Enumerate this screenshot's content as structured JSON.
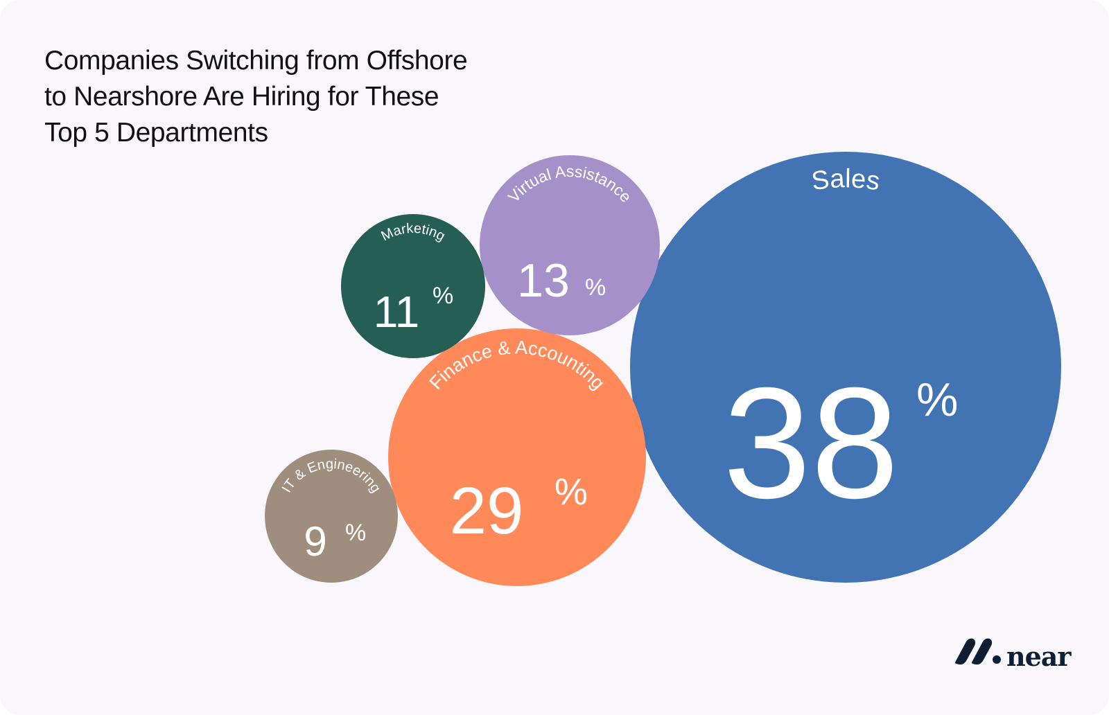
{
  "title": "Companies Switching from Offshore to Nearshore Are Hiring for These Top 5 Departments",
  "title_lines": [
    "Companies Switching from Offshore",
    "to Nearshore Are Hiring for These",
    "Top 5 Departments"
  ],
  "logo": {
    "text": "near",
    "icon": "near-logo-icon",
    "color": "#0e1f33"
  },
  "chart_data": {
    "type": "bubble",
    "title": "Companies Switching from Offshore to Nearshore Are Hiring for These Top 5 Departments",
    "unit": "%",
    "series": [
      {
        "name": "Sales",
        "value": 38,
        "color": "#4274b4"
      },
      {
        "name": "Finance & Accounting",
        "value": 29,
        "color": "#ff8959"
      },
      {
        "name": "Virtual Assistance",
        "value": 13,
        "color": "#a590c9"
      },
      {
        "name": "Marketing",
        "value": 11,
        "color": "#255e55"
      },
      {
        "name": "IT & Engineering",
        "value": 9,
        "color": "#9f8e7d"
      }
    ]
  }
}
